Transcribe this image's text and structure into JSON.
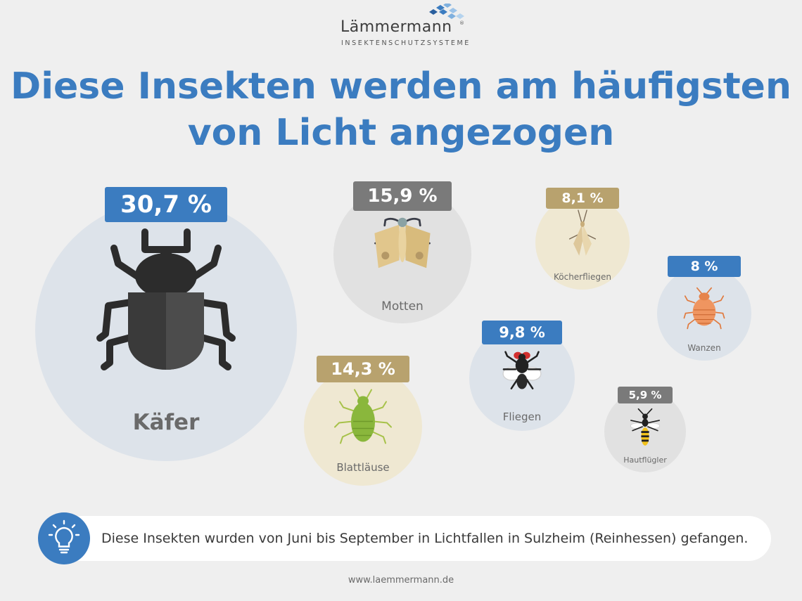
{
  "brand": {
    "name": "Lämmermann",
    "registered": "®",
    "tagline": "INSEKTENSCHUTZSYSTEME"
  },
  "title_line1": "Diese Insekten werden am häufigsten",
  "title_line2": "von Licht angezogen",
  "chart_data": {
    "type": "bubble",
    "title": "Diese Insekten werden am häufigsten von Licht angezogen",
    "unit": "%",
    "categories": [
      "Käfer",
      "Motten",
      "Blattläuse",
      "Fliegen",
      "Köcherfliegen",
      "Wanzen",
      "Hautflügler"
    ],
    "values": [
      30.7,
      15.9,
      14.3,
      9.8,
      8.1,
      8,
      5.9
    ],
    "value_labels": [
      "30,7 %",
      "15,9 %",
      "14,3 %",
      "9,8 %",
      "8,1 %",
      "8 %",
      "5,9 %"
    ],
    "badge_colors": [
      "#3b7cc0",
      "#7a7a7a",
      "#b8a26e",
      "#3b7cc0",
      "#b8a26e",
      "#3b7cc0",
      "#7a7a7a"
    ],
    "bubble_colors": [
      "#dde3ea",
      "#e1e1e1",
      "#efe8d2",
      "#dde3ea",
      "#efe8d2",
      "#dde3ea",
      "#e1e1e1"
    ],
    "icons": [
      "beetle-icon",
      "moth-icon",
      "aphid-icon",
      "fly-icon",
      "caddisfly-icon",
      "bug-icon",
      "wasp-icon"
    ]
  },
  "info_text": "Diese Insekten wurden von Juni bis September in Lichtfallen in Sulzheim (Reinhessen) gefangen.",
  "info_icon": "lightbulb-icon",
  "footer_url": "www.laemmermann.de"
}
